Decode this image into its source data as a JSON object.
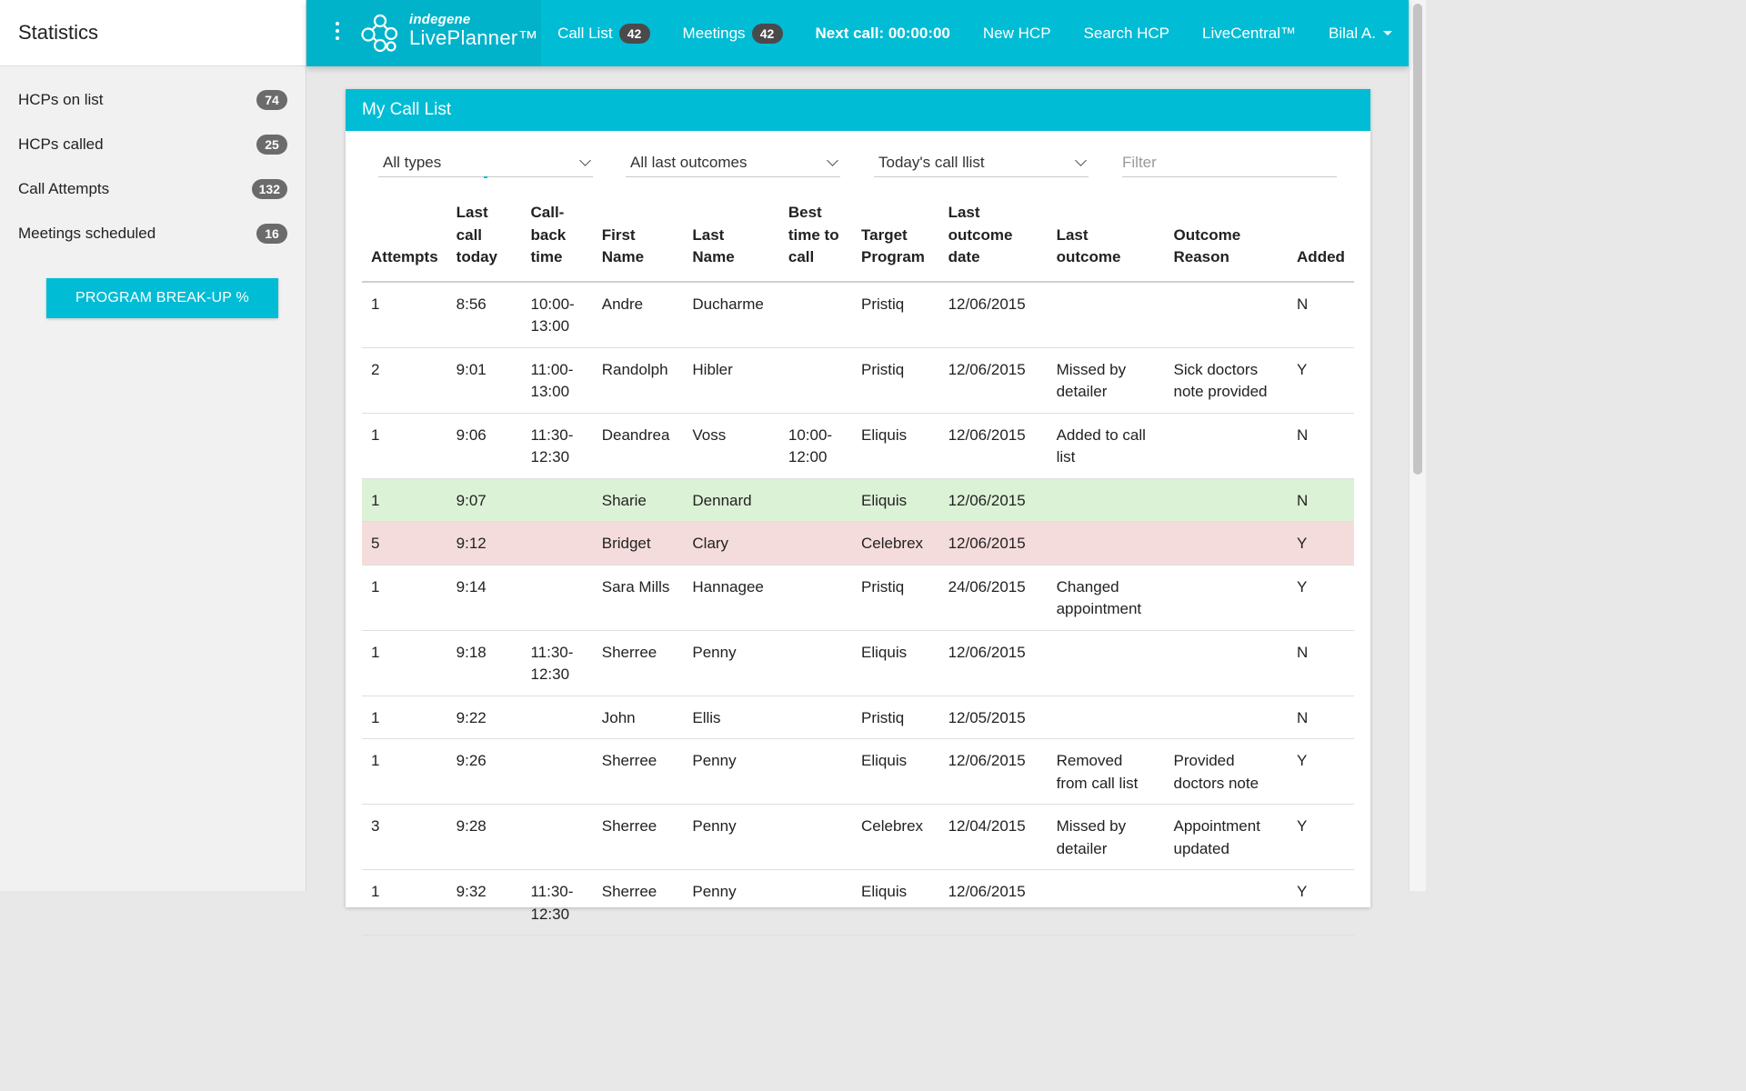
{
  "sidebar": {
    "title": "Statistics",
    "stats": [
      {
        "label": "HCPs on list",
        "count": "74"
      },
      {
        "label": "HCPs called",
        "count": "25"
      },
      {
        "label": "Call Attempts",
        "count": "132"
      },
      {
        "label": "Meetings scheduled",
        "count": "16"
      }
    ],
    "button_label": "PROGRAM BREAK-UP %"
  },
  "brand": {
    "company": "indegene",
    "product": "LivePlanner™"
  },
  "nav": {
    "call_list_label": "Call List",
    "call_list_count": "42",
    "meetings_label": "Meetings",
    "meetings_count": "42",
    "next_call": "Next call: 00:00:00",
    "new_hcp": "New HCP",
    "search_hcp": "Search HCP",
    "livecentral": "LiveCentral™",
    "user": "Bilal A."
  },
  "card": {
    "title": "My Call List",
    "filters": {
      "type": "All types",
      "outcome": "All last outcomes",
      "list": "Today's call llist",
      "filter_placeholder": "Filter"
    }
  },
  "table": {
    "headers": [
      [
        "Attempts"
      ],
      [
        "Last",
        "call",
        "today"
      ],
      [
        "Call-",
        "back",
        "time"
      ],
      [
        "First",
        "Name"
      ],
      [
        "Last Name"
      ],
      [
        "Best",
        "time to",
        "call"
      ],
      [
        "Target",
        "Program"
      ],
      [
        "Last",
        "outcome",
        "date"
      ],
      [
        "Last outcome"
      ],
      [
        "Outcome",
        "Reason"
      ],
      [
        "Added"
      ]
    ],
    "rows": [
      {
        "style": "tall",
        "cells": [
          "1",
          "8:56",
          "10:00-\n13:00",
          "Andre",
          "Ducharme",
          "",
          "Pristiq",
          "12/06/2015",
          "",
          "",
          "N"
        ]
      },
      {
        "style": "tall",
        "cells": [
          "2",
          "9:01",
          "11:00-\n13:00",
          "Randolph",
          "Hibler",
          "",
          "Pristiq",
          "12/06/2015",
          "Missed by\ndetailer",
          "Sick doctors\nnote provided",
          "Y"
        ]
      },
      {
        "style": "tall",
        "cells": [
          "1",
          "9:06",
          "11:30-\n12:30",
          "Deandrea",
          "Voss",
          "10:00-\n12:00",
          "Eliquis",
          "12/06/2015",
          "Added to call\nlist",
          "",
          "N"
        ]
      },
      {
        "style": "short green",
        "cells": [
          "1",
          "9:07",
          "",
          "Sharie",
          "Dennard",
          "",
          "Eliquis",
          "12/06/2015",
          "",
          "",
          "N"
        ]
      },
      {
        "style": "short red",
        "cells": [
          "5",
          "9:12",
          "",
          "Bridget",
          "Clary",
          "",
          "Celebrex",
          "12/06/2015",
          "",
          "",
          "Y"
        ]
      },
      {
        "style": "tall",
        "cells": [
          "1",
          "9:14",
          "",
          "Sara Mills",
          "Hannagee",
          "",
          "Pristiq",
          "24/06/2015",
          "Changed\nappointment",
          "",
          "Y"
        ]
      },
      {
        "style": "tall",
        "cells": [
          "1",
          "9:18",
          "11:30-\n12:30",
          "Sherree",
          "Penny",
          "",
          "Eliquis",
          "12/06/2015",
          "",
          "",
          "N"
        ]
      },
      {
        "style": "short",
        "cells": [
          "1",
          "9:22",
          "",
          "John",
          "Ellis",
          "",
          "Pristiq",
          "12/05/2015",
          "",
          "",
          "N"
        ]
      },
      {
        "style": "tall",
        "cells": [
          "1",
          "9:26",
          "",
          "Sherree",
          "Penny",
          "",
          "Eliquis",
          "12/06/2015",
          "Removed\nfrom call list",
          "Provided\ndoctors note",
          "Y"
        ]
      },
      {
        "style": "tall",
        "cells": [
          "3",
          "9:28",
          "",
          "Sherree",
          "Penny",
          "",
          "Celebrex",
          "12/04/2015",
          "Missed by\ndetailer",
          "Appointment\nupdated",
          "Y"
        ]
      },
      {
        "style": "tall",
        "cells": [
          "1",
          "9:32",
          "11:30-\n12:30",
          "Sherree",
          "Penny",
          "",
          "Eliquis",
          "12/06/2015",
          "",
          "",
          "Y"
        ]
      }
    ]
  },
  "colors": {
    "accent": "#00bcd4",
    "row_highlight_green": "#dcf2d6",
    "row_highlight_red": "#f5dcdc",
    "badge": "#6b6b6b"
  },
  "icons": {
    "menu": "kebab-menu-icon",
    "logo": "molecule-logo-icon",
    "dropdown": "chevron-down-icon",
    "user_menu": "caret-down-icon"
  }
}
